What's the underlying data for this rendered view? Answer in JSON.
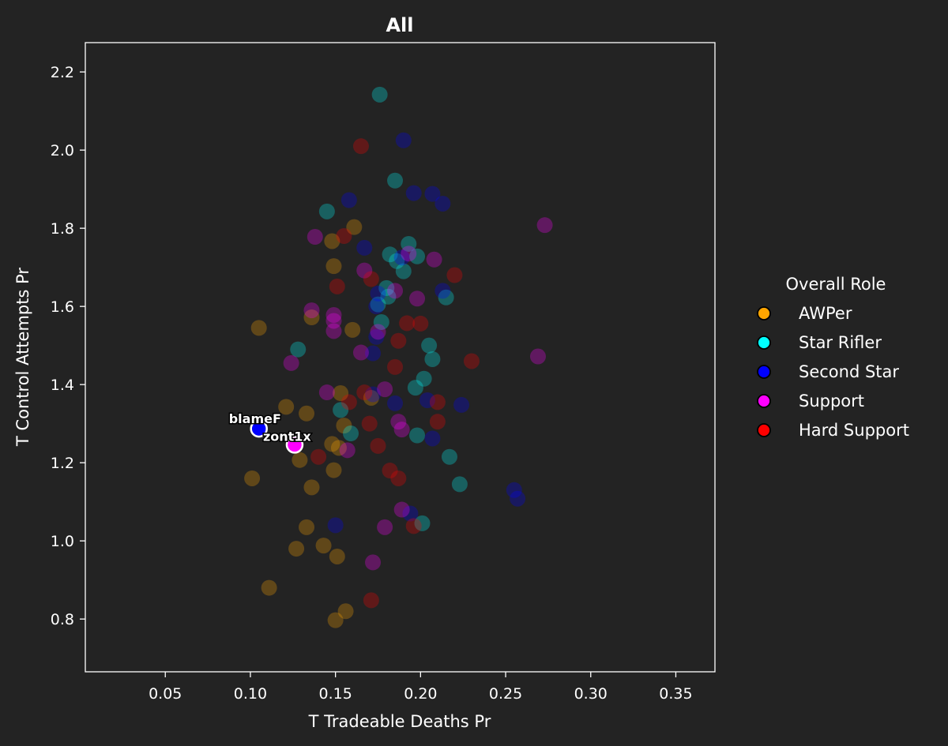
{
  "chart_data": {
    "type": "scatter",
    "title": "All",
    "xlabel": "T Tradeable Deaths Pr",
    "ylabel": "T Control Attempts Pr",
    "xlim": [
      0.003,
      0.373
    ],
    "ylim": [
      0.665,
      2.275
    ],
    "xticks": [
      0.05,
      0.1,
      0.15,
      0.2,
      0.25,
      0.3,
      0.35
    ],
    "xtick_labels": [
      "0.05",
      "0.10",
      "0.15",
      "0.20",
      "0.25",
      "0.30",
      "0.35"
    ],
    "yticks": [
      0.8,
      1.0,
      1.2,
      1.4,
      1.6,
      1.8,
      2.0,
      2.2
    ],
    "ytick_labels": [
      "0.8",
      "1.0",
      "1.2",
      "1.4",
      "1.6",
      "1.8",
      "2.0",
      "2.2"
    ],
    "legend": {
      "title": "Overall Role",
      "placement": "outside-right",
      "entries": [
        {
          "label": "AWPer",
          "color": "#ffa500"
        },
        {
          "label": "Star Rifler",
          "color": "#00ffff"
        },
        {
          "label": "Second Star",
          "color": "#0000ff"
        },
        {
          "label": "Support",
          "color": "#ff00ff"
        },
        {
          "label": "Hard Support",
          "color": "#ff0000"
        }
      ]
    },
    "series": [
      {
        "name": "AWPer",
        "color": "#ffa500",
        "x": [
          0.105,
          0.161,
          0.148,
          0.149,
          0.136,
          0.153,
          0.121,
          0.133,
          0.155,
          0.148,
          0.152,
          0.101,
          0.129,
          0.136,
          0.149,
          0.133,
          0.143,
          0.127,
          0.151,
          0.111,
          0.156,
          0.15,
          0.16,
          0.171
        ],
        "y": [
          1.545,
          1.803,
          1.767,
          1.703,
          1.572,
          1.378,
          1.343,
          1.326,
          1.295,
          1.248,
          1.238,
          1.16,
          1.207,
          1.137,
          1.181,
          1.035,
          0.988,
          0.98,
          0.96,
          0.88,
          0.82,
          0.797,
          1.54,
          1.366
        ]
      },
      {
        "name": "Star Rifler",
        "color": "#00ffff",
        "x": [
          0.176,
          0.185,
          0.145,
          0.182,
          0.193,
          0.186,
          0.198,
          0.19,
          0.18,
          0.181,
          0.177,
          0.215,
          0.175,
          0.128,
          0.205,
          0.207,
          0.202,
          0.197,
          0.153,
          0.159,
          0.198,
          0.217,
          0.223,
          0.201
        ],
        "y": [
          2.142,
          1.922,
          1.843,
          1.733,
          1.76,
          1.716,
          1.728,
          1.69,
          1.647,
          1.625,
          1.56,
          1.623,
          1.605,
          1.49,
          1.5,
          1.465,
          1.415,
          1.392,
          1.335,
          1.275,
          1.27,
          1.215,
          1.145,
          1.045
        ]
      },
      {
        "name": "Second Star",
        "color": "#0000ff",
        "x": [
          0.19,
          0.158,
          0.196,
          0.207,
          0.213,
          0.167,
          0.189,
          0.175,
          0.174,
          0.172,
          0.213,
          0.174,
          0.224,
          0.185,
          0.172,
          0.204,
          0.207,
          0.255,
          0.257,
          0.15,
          0.194
        ],
        "y": [
          2.025,
          1.872,
          1.89,
          1.888,
          1.863,
          1.75,
          1.725,
          1.633,
          1.6,
          1.48,
          1.64,
          1.522,
          1.348,
          1.352,
          1.375,
          1.36,
          1.262,
          1.13,
          1.108,
          1.04,
          1.07
        ]
      },
      {
        "name": "Support",
        "color": "#ff00ff",
        "x": [
          0.138,
          0.273,
          0.208,
          0.193,
          0.167,
          0.185,
          0.198,
          0.136,
          0.149,
          0.149,
          0.149,
          0.175,
          0.165,
          0.124,
          0.269,
          0.179,
          0.145,
          0.187,
          0.189,
          0.157,
          0.189,
          0.179,
          0.172
        ],
        "y": [
          1.778,
          1.808,
          1.72,
          1.735,
          1.692,
          1.64,
          1.62,
          1.59,
          1.578,
          1.563,
          1.537,
          1.535,
          1.482,
          1.455,
          1.472,
          1.388,
          1.38,
          1.305,
          1.285,
          1.232,
          1.08,
          1.035,
          0.945
        ]
      },
      {
        "name": "Hard Support",
        "color": "#ff0000",
        "x": [
          0.165,
          0.155,
          0.151,
          0.171,
          0.22,
          0.192,
          0.2,
          0.187,
          0.23,
          0.185,
          0.21,
          0.158,
          0.17,
          0.21,
          0.175,
          0.14,
          0.182,
          0.187,
          0.196,
          0.171,
          0.167
        ],
        "y": [
          2.01,
          1.78,
          1.651,
          1.67,
          1.68,
          1.557,
          1.556,
          1.512,
          1.46,
          1.445,
          1.355,
          1.355,
          1.3,
          1.305,
          1.243,
          1.215,
          1.18,
          1.16,
          1.038,
          0.848,
          1.38
        ]
      }
    ],
    "highlighted": [
      {
        "name": "blameF",
        "role": "Second Star",
        "x": 0.105,
        "y": 1.287,
        "color": "#0000ff"
      },
      {
        "name": "zont1x",
        "role": "Support",
        "x": 0.126,
        "y": 1.246,
        "color": "#ff00ff"
      }
    ]
  }
}
